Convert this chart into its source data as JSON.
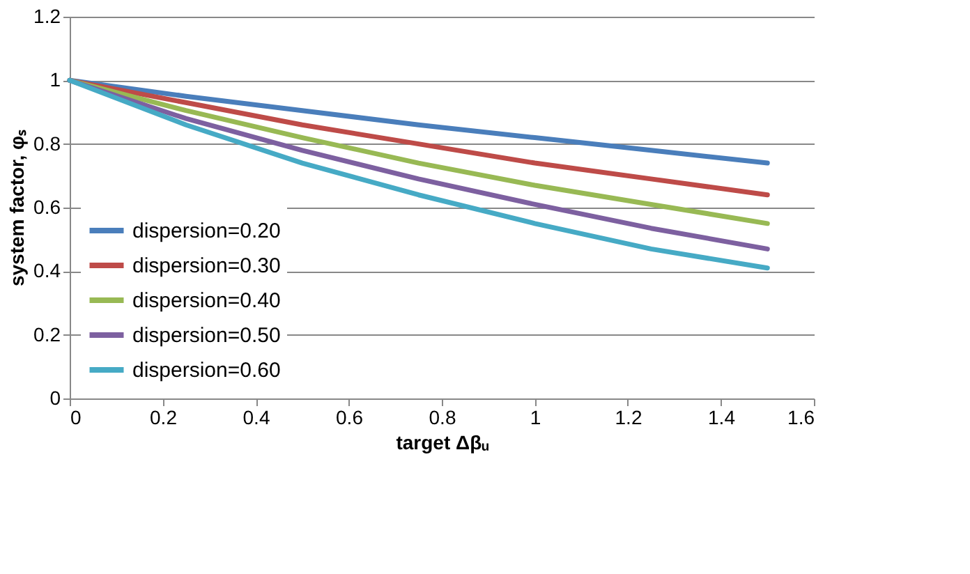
{
  "chart_data": {
    "type": "line",
    "xlabel": "target Δβᵤ",
    "ylabel": "system factor, φₛ",
    "x": [
      0,
      0.25,
      0.5,
      0.75,
      1,
      1.25,
      1.5
    ],
    "series": [
      {
        "name": "dispersion=0.20",
        "color": "#4a7ebb",
        "values": [
          1,
          0.95,
          0.905,
          0.86,
          0.82,
          0.78,
          0.74
        ]
      },
      {
        "name": "dispersion=0.30",
        "color": "#be4b48",
        "values": [
          1,
          0.93,
          0.86,
          0.8,
          0.74,
          0.69,
          0.64
        ]
      },
      {
        "name": "dispersion=0.40",
        "color": "#98b954",
        "values": [
          1,
          0.905,
          0.82,
          0.74,
          0.67,
          0.61,
          0.55
        ]
      },
      {
        "name": "dispersion=0.50",
        "color": "#7d60a0",
        "values": [
          1,
          0.88,
          0.78,
          0.69,
          0.61,
          0.535,
          0.47
        ]
      },
      {
        "name": "dispersion=0.60",
        "color": "#46aac5",
        "values": [
          1,
          0.86,
          0.74,
          0.64,
          0.55,
          0.47,
          0.41
        ]
      }
    ],
    "xlim": [
      0,
      1.6
    ],
    "xticks": [
      0,
      0.2,
      0.4,
      0.6,
      0.8,
      1,
      1.2,
      1.4,
      1.6
    ],
    "ylim": [
      0,
      1.2
    ],
    "yticks": [
      0,
      0.2,
      0.4,
      0.6,
      0.8,
      1,
      1.2
    ],
    "grid": "y",
    "legend": "bottom left",
    "marker": "none",
    "line_style": "solid"
  }
}
